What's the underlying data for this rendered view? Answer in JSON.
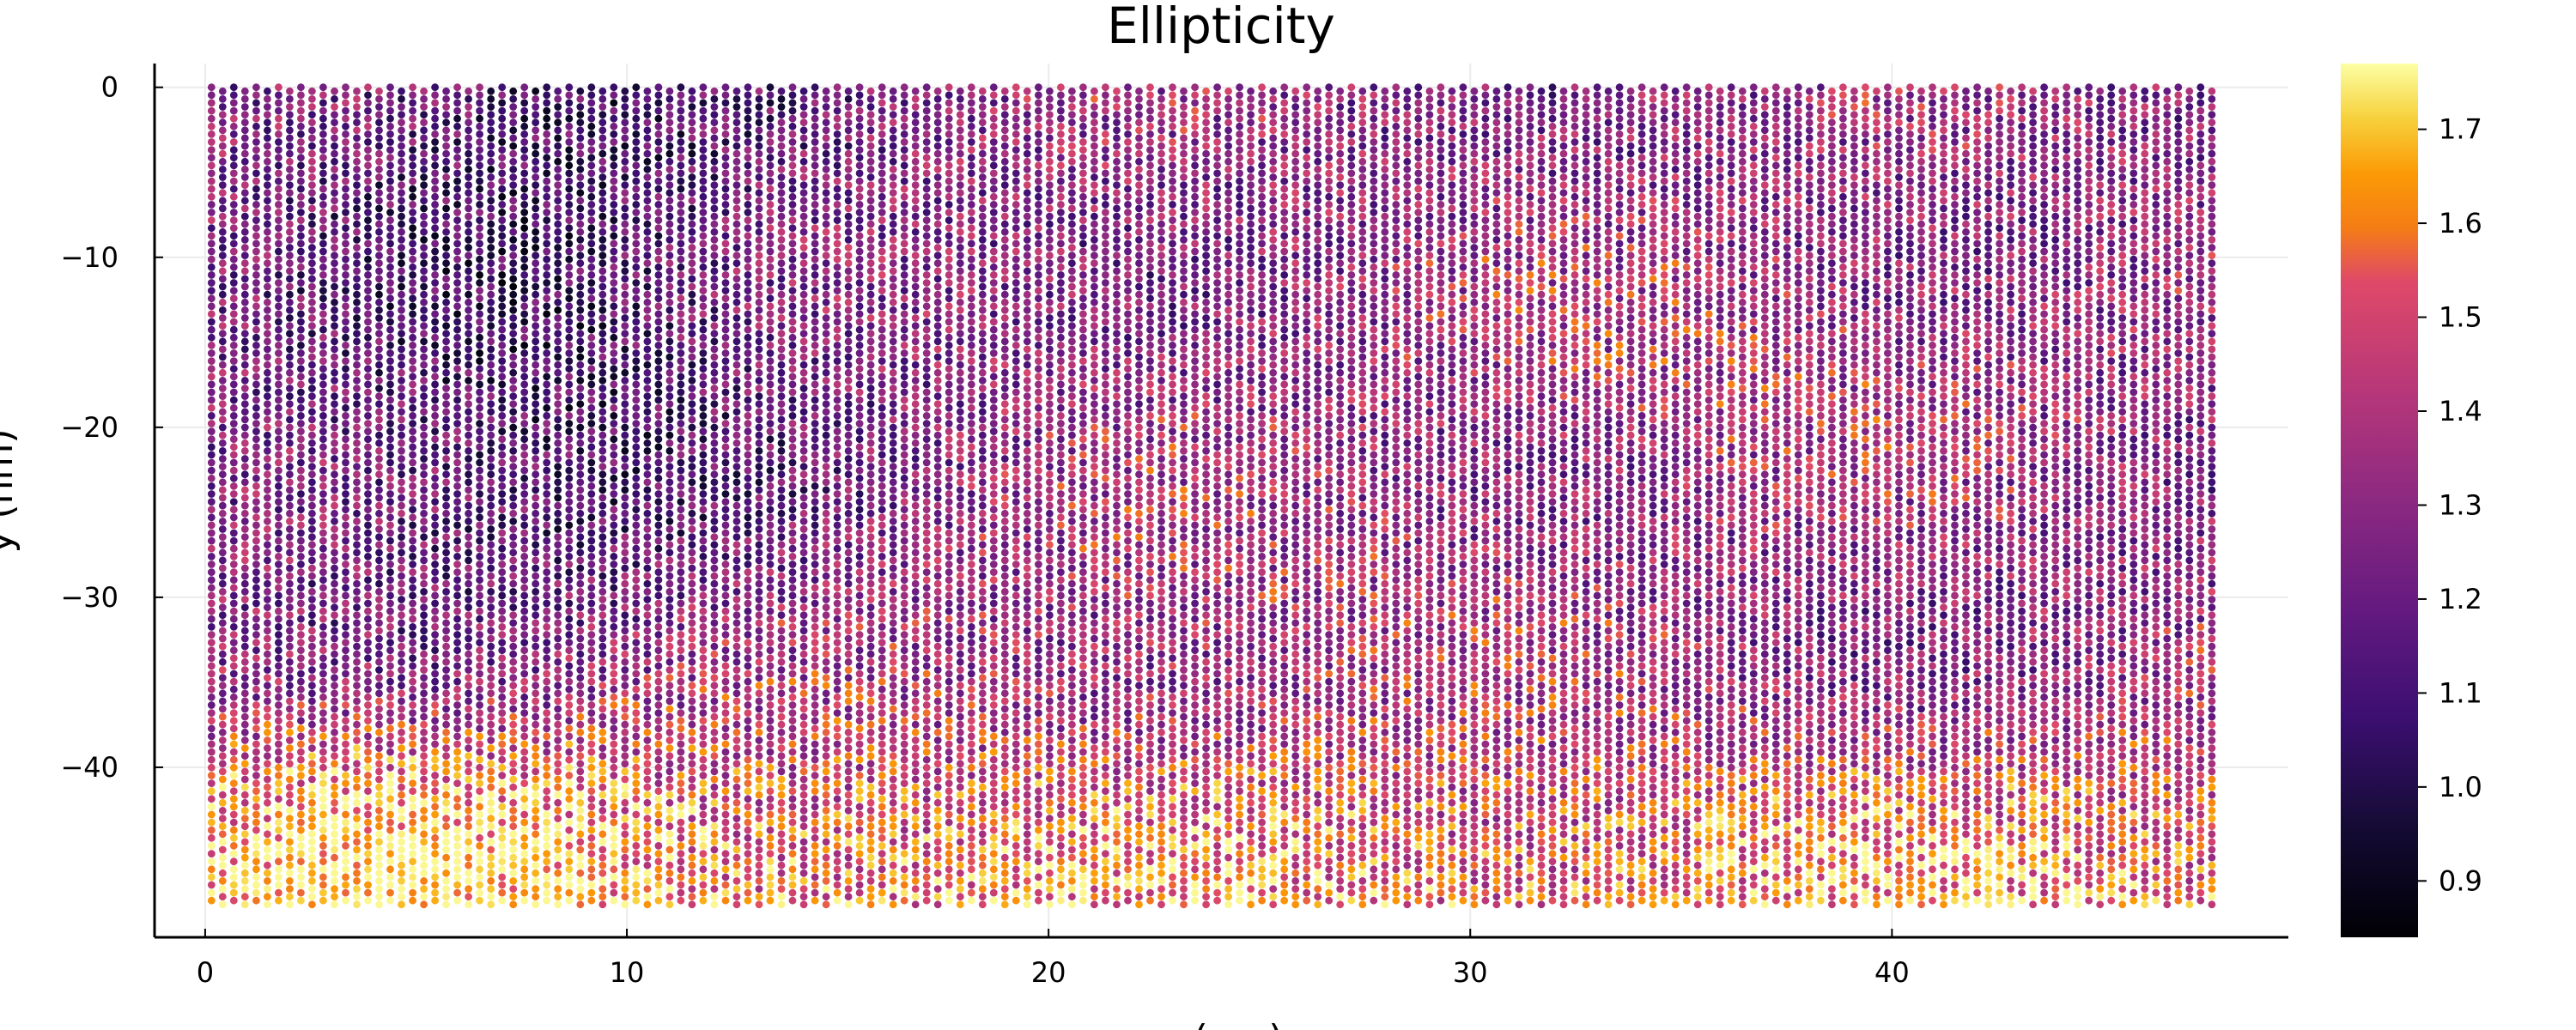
{
  "chart_data": {
    "type": "scatter",
    "title": "Ellipticity",
    "xlabel": "x (nm)",
    "ylabel": "y (nm)",
    "xlim": [
      -1.2,
      49.4
    ],
    "ylim": [
      -50.0,
      1.4
    ],
    "xticks": [
      0,
      10,
      20,
      30,
      40
    ],
    "yticks": [
      0,
      -10,
      -20,
      -30,
      -40
    ],
    "grid": true,
    "legend": "none",
    "colormap": "inferno",
    "colorbar": {
      "range": [
        0.84,
        1.77
      ],
      "ticks": [
        0.9,
        1.0,
        1.1,
        1.2,
        1.3,
        1.4,
        1.5,
        1.6,
        1.7
      ]
    },
    "lattice": {
      "x_start": 0.15,
      "x_end": 47.8,
      "column_spacing": 0.265,
      "y_top": 0.0,
      "y_bottom": -48.2,
      "row_spacing": 0.46,
      "alternate_row_offset": 0.23
    },
    "field_summary": {
      "value_range": [
        0.85,
        1.76
      ],
      "low_region": "x 4–12 nm, y 0 to -30 nm (values ≈ 1.0–1.2)",
      "high_region": "bottom band y -38 to -48 nm, x 0–12 nm (values ≈ 1.5–1.75)",
      "typical_value": 1.3
    }
  },
  "colors": {
    "axis": "#000000",
    "grid": "#ebebeb",
    "background": "#ffffff"
  }
}
